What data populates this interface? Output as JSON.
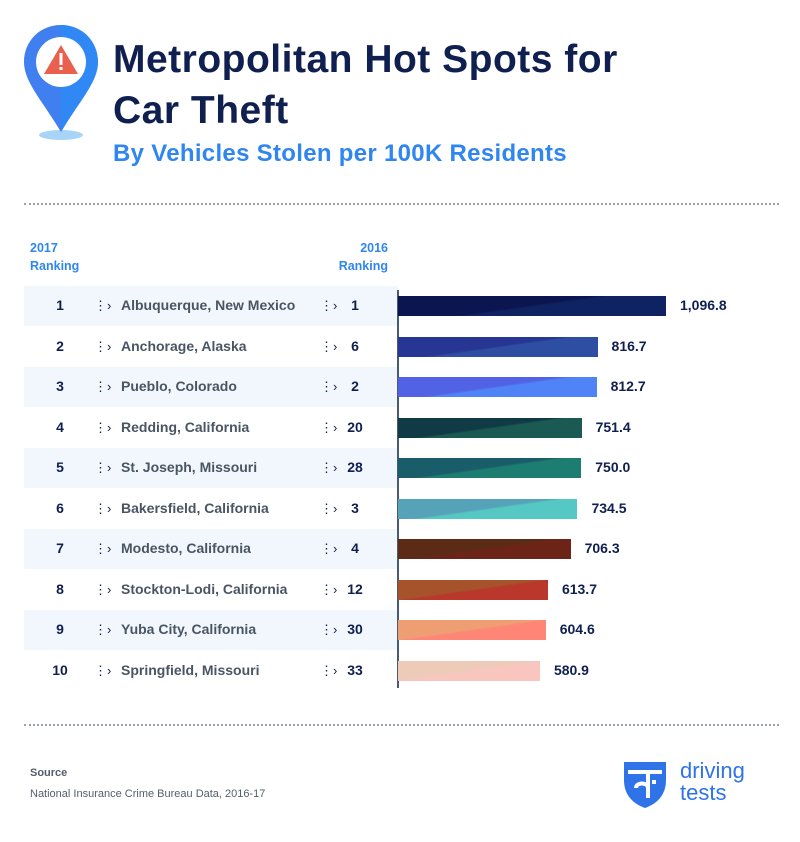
{
  "header": {
    "title_line1": "Metropolitan Hot Spots for",
    "title_line2": "Car Theft",
    "subtitle": "By Vehicles Stolen per 100K Residents",
    "icon": "map-pin-warning-icon"
  },
  "columns": {
    "rank_2017_line1": "2017",
    "rank_2017_line2": "Ranking",
    "rank_2016_line1": "2016",
    "rank_2016_line2": "Ranking"
  },
  "chart_data": {
    "type": "bar",
    "orientation": "horizontal",
    "title": "Metropolitan Hot Spots for Car Theft",
    "subtitle": "By Vehicles Stolen per 100K Residents",
    "categories": [
      "Albuquerque, New Mexico",
      "Anchorage, Alaska",
      "Pueblo, Colorado",
      "Redding, California",
      "St. Joseph, Missouri",
      "Bakersfield, California",
      "Modesto, California",
      "Stockton-Lodi, California",
      "Yuba City, California",
      "Springfield, Missouri"
    ],
    "rank_2017": [
      "1",
      "2",
      "3",
      "4",
      "5",
      "6",
      "7",
      "8",
      "9",
      "10"
    ],
    "rank_2016": [
      "1",
      "6",
      "2",
      "20",
      "28",
      "3",
      "4",
      "12",
      "30",
      "33"
    ],
    "values": [
      1096.8,
      816.7,
      812.7,
      751.4,
      750.0,
      734.5,
      706.3,
      613.7,
      604.6,
      580.9
    ],
    "value_labels": [
      "1,096.8",
      "816.7",
      "812.7",
      "751.4",
      "750.0",
      "734.5",
      "706.3",
      "613.7",
      "604.6",
      "580.9"
    ],
    "colors": [
      [
        "#0f2362",
        "#0b1650"
      ],
      [
        "#2d4ea2",
        "#283693"
      ],
      [
        "#5083f6",
        "#5163e4"
      ],
      [
        "#1b5a52",
        "#113a47"
      ],
      [
        "#1e7d71",
        "#1a5d6a"
      ],
      [
        "#55c8c3",
        "#56a3b9"
      ],
      [
        "#6c2418",
        "#5b2b17"
      ],
      [
        "#ba372b",
        "#a6522b"
      ],
      [
        "#ff8677",
        "#ee9e72"
      ],
      [
        "#f9c6bf",
        "#eecbb8"
      ]
    ],
    "grid": false,
    "legend": "none"
  },
  "footer": {
    "source_label": "Source",
    "source_text": "National Insurance Crime Bureau Data, 2016-17",
    "logo_line1": "driving",
    "logo_line2": "tests"
  }
}
